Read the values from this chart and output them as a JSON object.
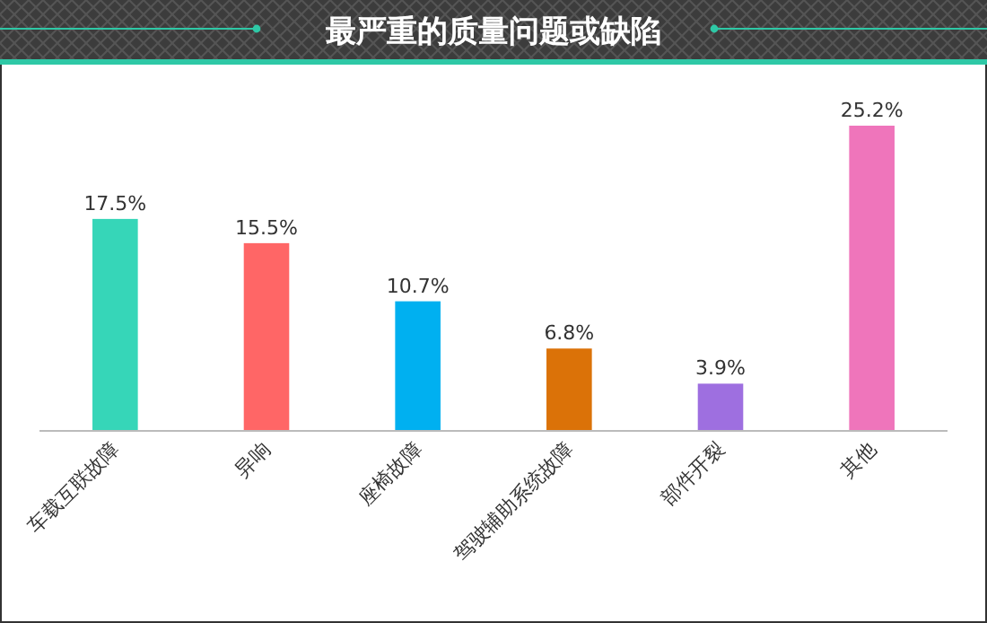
{
  "chart_data": {
    "type": "bar",
    "title": "最严重的质量问题或缺陷",
    "categories": [
      "车载互联故障",
      "异响",
      "座椅故障",
      "驾驶辅助系统故障",
      "部件开裂",
      "其他"
    ],
    "values": [
      17.5,
      15.5,
      10.7,
      6.8,
      3.9,
      25.2
    ],
    "value_labels": [
      "17.5%",
      "15.5%",
      "10.7%",
      "6.8%",
      "3.9%",
      "25.2%"
    ],
    "colors": [
      "#36d6b8",
      "#ff6666",
      "#00b0f0",
      "#db7208",
      "#9e6fe0",
      "#ef75bb"
    ],
    "tick_labels": "x"
  }
}
